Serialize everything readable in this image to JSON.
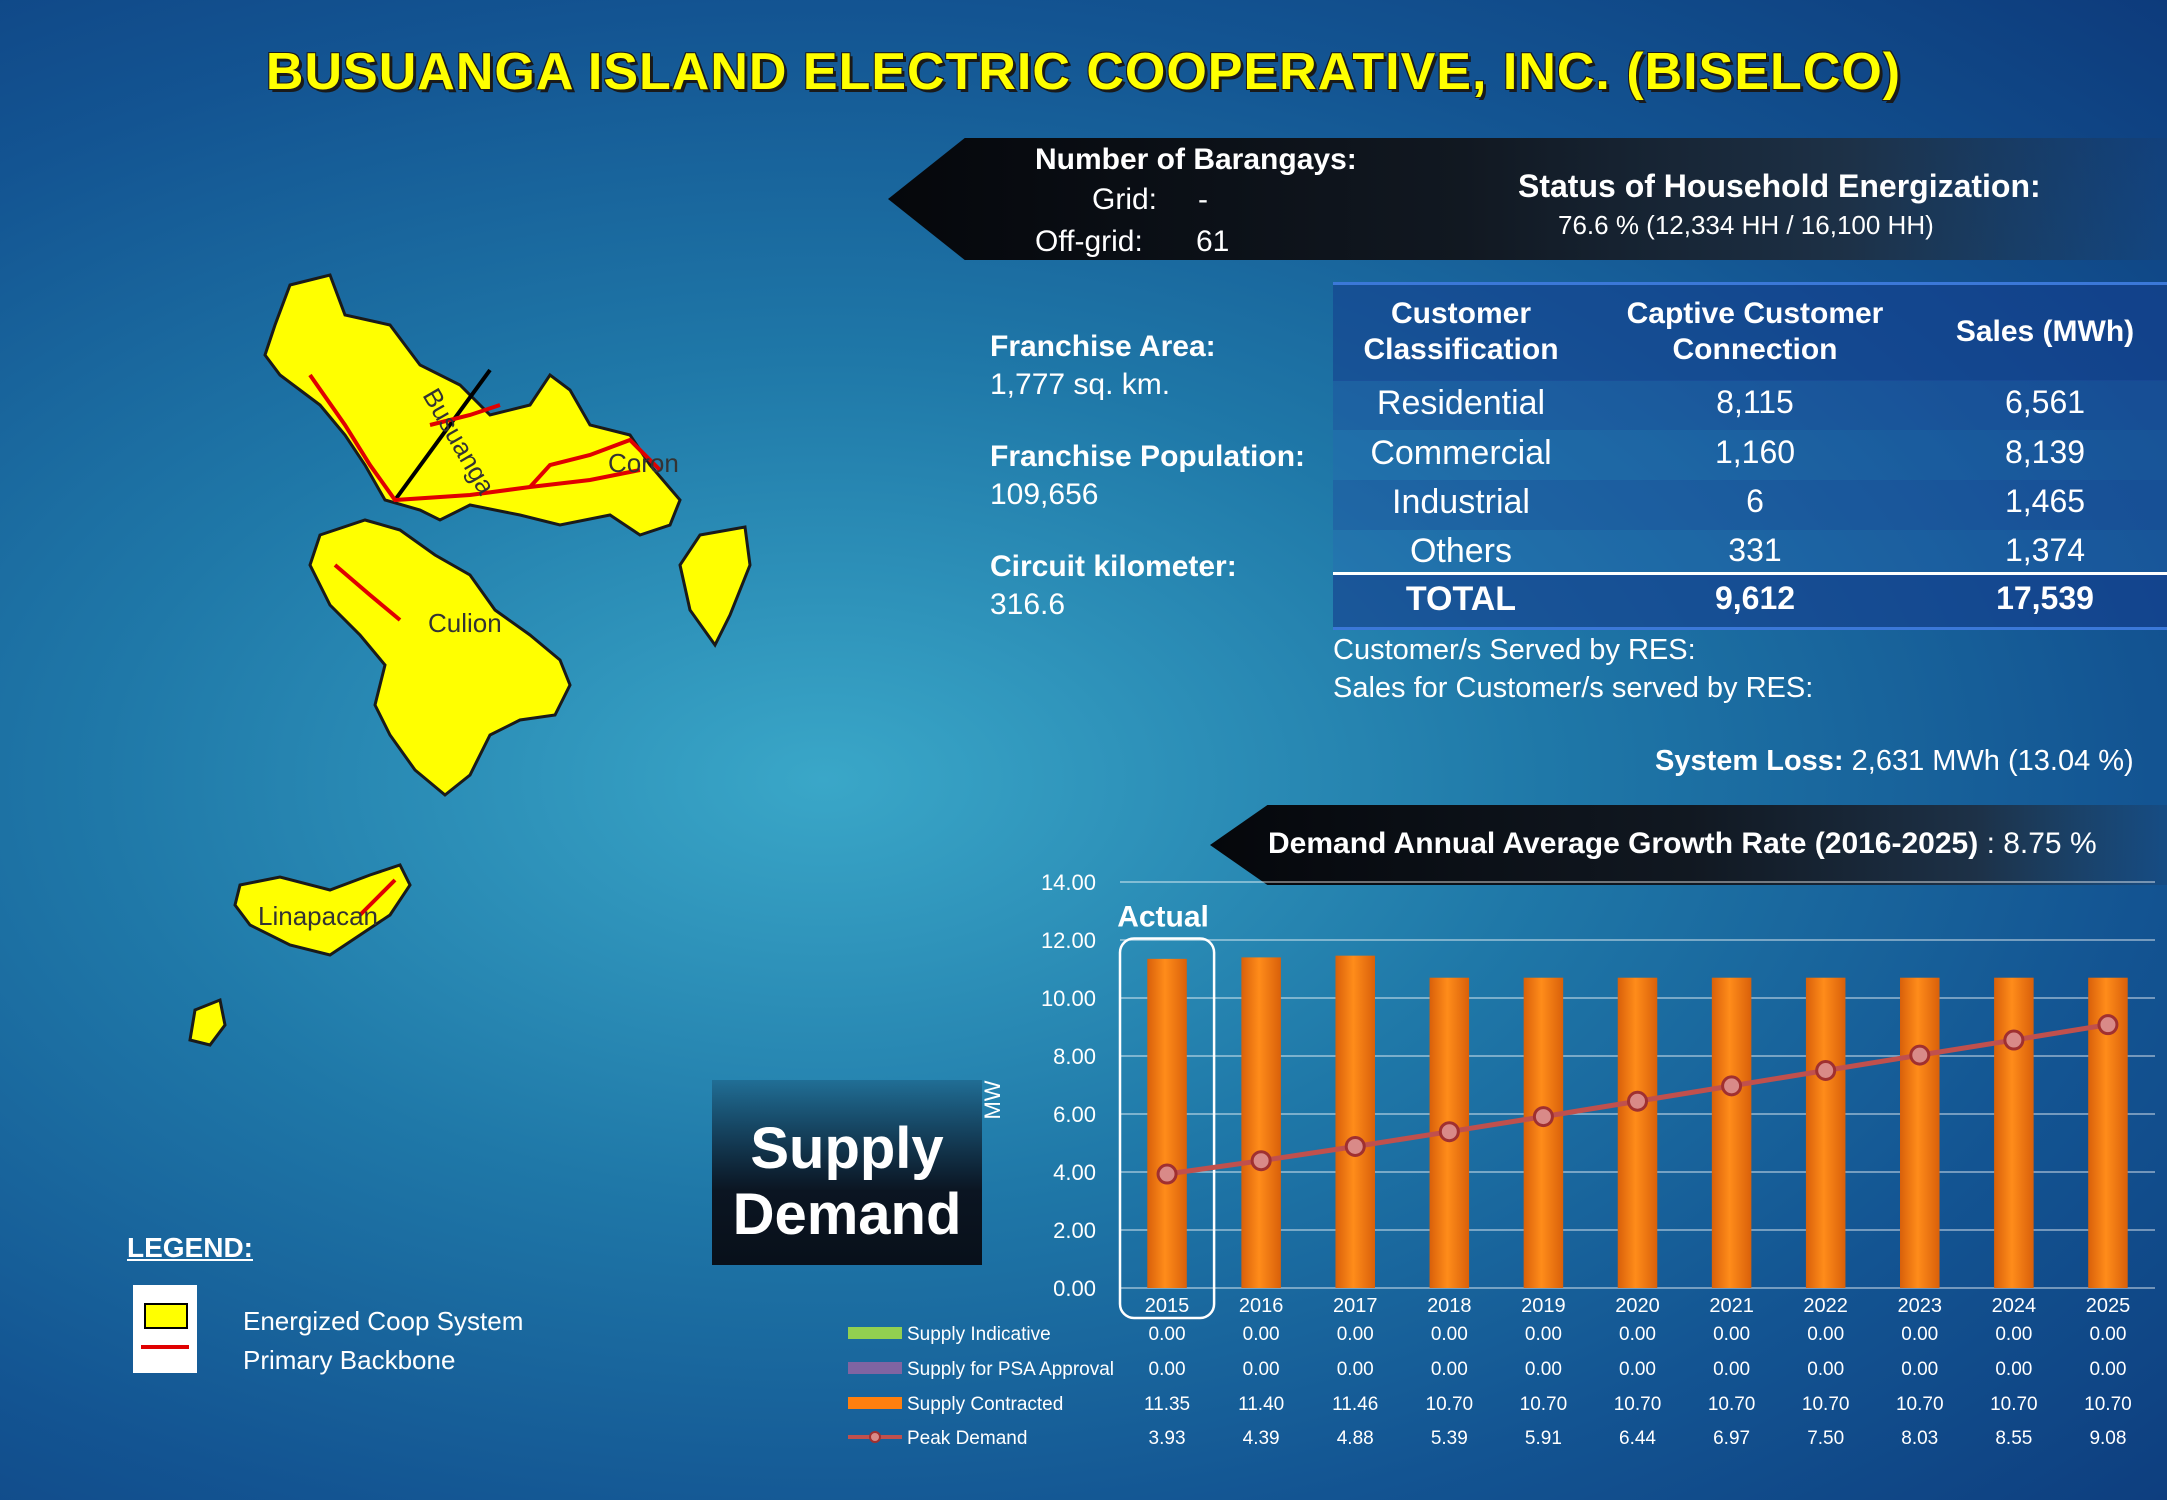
{
  "title": "BUSUANGA ISLAND ELECTRIC COOPERATIVE, INC. (BISELCO)",
  "barangays": {
    "heading": "Number of Barangays:",
    "grid_label": "Grid:",
    "grid_value": "-",
    "offgrid_label": "Off-grid:",
    "offgrid_value": "61"
  },
  "energization": {
    "heading": "Status of Household Energization:",
    "value": "76.6 % (12,334 HH /  16,100 HH)"
  },
  "franchise": {
    "area_label": "Franchise Area:",
    "area_value": "1,777 sq. km.",
    "pop_label": "Franchise Population:",
    "pop_value": "109,656",
    "circuit_label": "Circuit kilometer:",
    "circuit_value": "316.6"
  },
  "customer_table": {
    "headers": [
      "Customer Classification",
      "Captive Customer Connection",
      "Sales (MWh)"
    ],
    "rows": [
      {
        "cls": "Residential",
        "conn": "8,115",
        "sales": "6,561"
      },
      {
        "cls": "Commercial",
        "conn": "1,160",
        "sales": "8,139"
      },
      {
        "cls": "Industrial",
        "conn": "6",
        "sales": "1,465"
      },
      {
        "cls": "Others",
        "conn": "331",
        "sales": "1,374"
      }
    ],
    "total": {
      "cls": "TOTAL",
      "conn": "9,612",
      "sales": "17,539"
    }
  },
  "res": {
    "served": "Customer/s Served by RES:",
    "sales": "Sales for Customer/s served by RES:"
  },
  "system_loss": {
    "label": "System Loss:",
    "value": "2,631 MWh (13.04 %)"
  },
  "growth": {
    "label": "Demand Annual Average Growth Rate (2016-2025)",
    "value": ": 8.75 %"
  },
  "supply_demand": {
    "line1": "Supply",
    "line2": "Demand"
  },
  "map_labels": {
    "busuanga": "Busuanga",
    "coron": "Coron",
    "culion": "Culion",
    "linapacan": "Linapacan"
  },
  "legend": {
    "title": "LEGEND:",
    "item1": "Energized Coop System",
    "item2": "Primary Backbone"
  },
  "colors": {
    "island": "#ffff00",
    "backbone": "#e00000",
    "bar": "#ff7f0e",
    "line": "#c0504d"
  },
  "chart_data": {
    "type": "bar",
    "categories": [
      "2015",
      "2016",
      "2017",
      "2018",
      "2019",
      "2020",
      "2021",
      "2022",
      "2023",
      "2024",
      "2025"
    ],
    "ylabel": "MW",
    "ylim": [
      0,
      14
    ],
    "yticks": [
      "0.00",
      "2.00",
      "4.00",
      "6.00",
      "8.00",
      "10.00",
      "12.00",
      "14.00"
    ],
    "annotation": "Actual",
    "grid": true,
    "series": [
      {
        "name": "Supply Indicative",
        "type": "bar",
        "values": [
          0,
          0,
          0,
          0,
          0,
          0,
          0,
          0,
          0,
          0,
          0
        ],
        "labels": [
          "0.00",
          "0.00",
          "0.00",
          "0.00",
          "0.00",
          "0.00",
          "0.00",
          "0.00",
          "0.00",
          "0.00",
          "0.00"
        ],
        "color": "#92d050"
      },
      {
        "name": "Supply for PSA Approval",
        "type": "bar",
        "values": [
          0,
          0,
          0,
          0,
          0,
          0,
          0,
          0,
          0,
          0,
          0
        ],
        "labels": [
          "0.00",
          "0.00",
          "0.00",
          "0.00",
          "0.00",
          "0.00",
          "0.00",
          "0.00",
          "0.00",
          "0.00",
          "0.00"
        ],
        "color": "#8064a2"
      },
      {
        "name": "Supply Contracted",
        "type": "bar",
        "values": [
          11.35,
          11.4,
          11.46,
          10.7,
          10.7,
          10.7,
          10.7,
          10.7,
          10.7,
          10.7,
          10.7
        ],
        "labels": [
          "11.35",
          "11.40",
          "11.46",
          "10.70",
          "10.70",
          "10.70",
          "10.70",
          "10.70",
          "10.70",
          "10.70",
          "10.70"
        ],
        "color": "#ff7f0e"
      },
      {
        "name": "Peak Demand",
        "type": "line",
        "values": [
          3.93,
          4.39,
          4.88,
          5.39,
          5.91,
          6.44,
          6.97,
          7.5,
          8.03,
          8.55,
          9.08
        ],
        "labels": [
          "3.93",
          "4.39",
          "4.88",
          "5.39",
          "5.91",
          "6.44",
          "6.97",
          "7.50",
          "8.03",
          "8.55",
          "9.08"
        ],
        "color": "#c0504d"
      }
    ]
  }
}
